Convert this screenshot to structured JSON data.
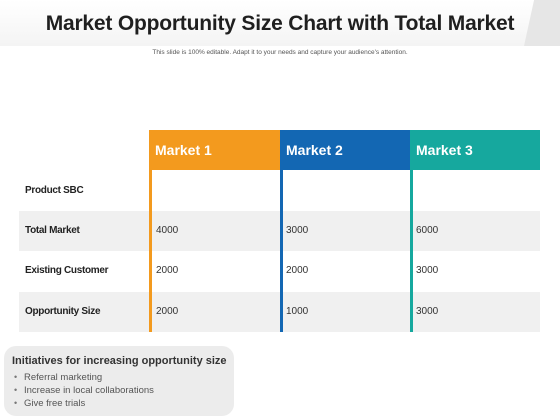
{
  "title": "Market Opportunity Size Chart with Total Market",
  "subtitle": "This slide is 100% editable. Adapt it to your needs and capture your audience's attention.",
  "table": {
    "columns": [
      {
        "label": "Market 1",
        "color": "#f39a1e"
      },
      {
        "label": "Market 2",
        "color": "#1367b3"
      },
      {
        "label": "Market 3",
        "color": "#16a89e"
      }
    ],
    "rows": [
      {
        "label": "Product SBC",
        "values": [
          "",
          "",
          ""
        ]
      },
      {
        "label": "Total Market",
        "values": [
          "4000",
          "3000",
          "6000"
        ]
      },
      {
        "label": "Existing Customer",
        "values": [
          "2000",
          "2000",
          "3000"
        ]
      },
      {
        "label": "Opportunity Size",
        "values": [
          "2000",
          "1000",
          "3000"
        ]
      }
    ]
  },
  "initiatives": {
    "title": "Initiatives  for increasing opportunity size",
    "items": [
      "Referral marketing",
      "Increase in local collaborations",
      "Give free trials"
    ]
  }
}
